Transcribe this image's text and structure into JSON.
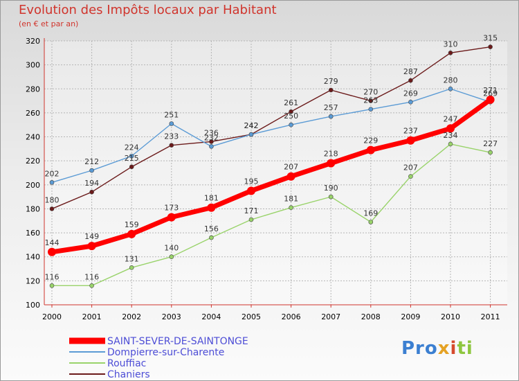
{
  "chart_data": {
    "type": "line",
    "title": "Evolution des Impôts locaux par Habitant",
    "subtitle": "(en € et par an)",
    "x": [
      "2000",
      "2001",
      "2002",
      "2003",
      "2004",
      "2005",
      "2006",
      "2007",
      "2008",
      "2009",
      "2010",
      "2011"
    ],
    "ylim": [
      100,
      320
    ],
    "yticks": [
      100,
      120,
      140,
      160,
      180,
      200,
      220,
      240,
      260,
      280,
      300,
      320
    ],
    "grid": true,
    "legend_position": "bottom-left",
    "series": [
      {
        "name": "Chaniers",
        "color": "#6b1a1a",
        "values": [
          180,
          194,
          215,
          233,
          236,
          242,
          261,
          279,
          270,
          287,
          310,
          315
        ]
      },
      {
        "name": "Dompierre-sur-Charente",
        "color": "#5b9bd5",
        "values": [
          202,
          212,
          224,
          251,
          232,
          242,
          250,
          257,
          263,
          269,
          280,
          269
        ]
      },
      {
        "name": "Rouffiac",
        "color": "#99d36a",
        "values": [
          116,
          116,
          131,
          140,
          156,
          171,
          181,
          190,
          169,
          207,
          234,
          227
        ]
      },
      {
        "name": "SAINT-SEVER-DE-SAINTONGE",
        "color": "#ff0000",
        "values": [
          144,
          149,
          159,
          173,
          181,
          195,
          207,
          218,
          229,
          237,
          247,
          271
        ]
      }
    ],
    "legend_order": [
      "SAINT-SEVER-DE-SAINTONGE",
      "Dompierre-sur-Charente",
      "Rouffiac",
      "Chaniers"
    ]
  },
  "logo": {
    "p1": "Pro",
    "p2": "x",
    "p3": "i",
    "p4": "ti"
  }
}
